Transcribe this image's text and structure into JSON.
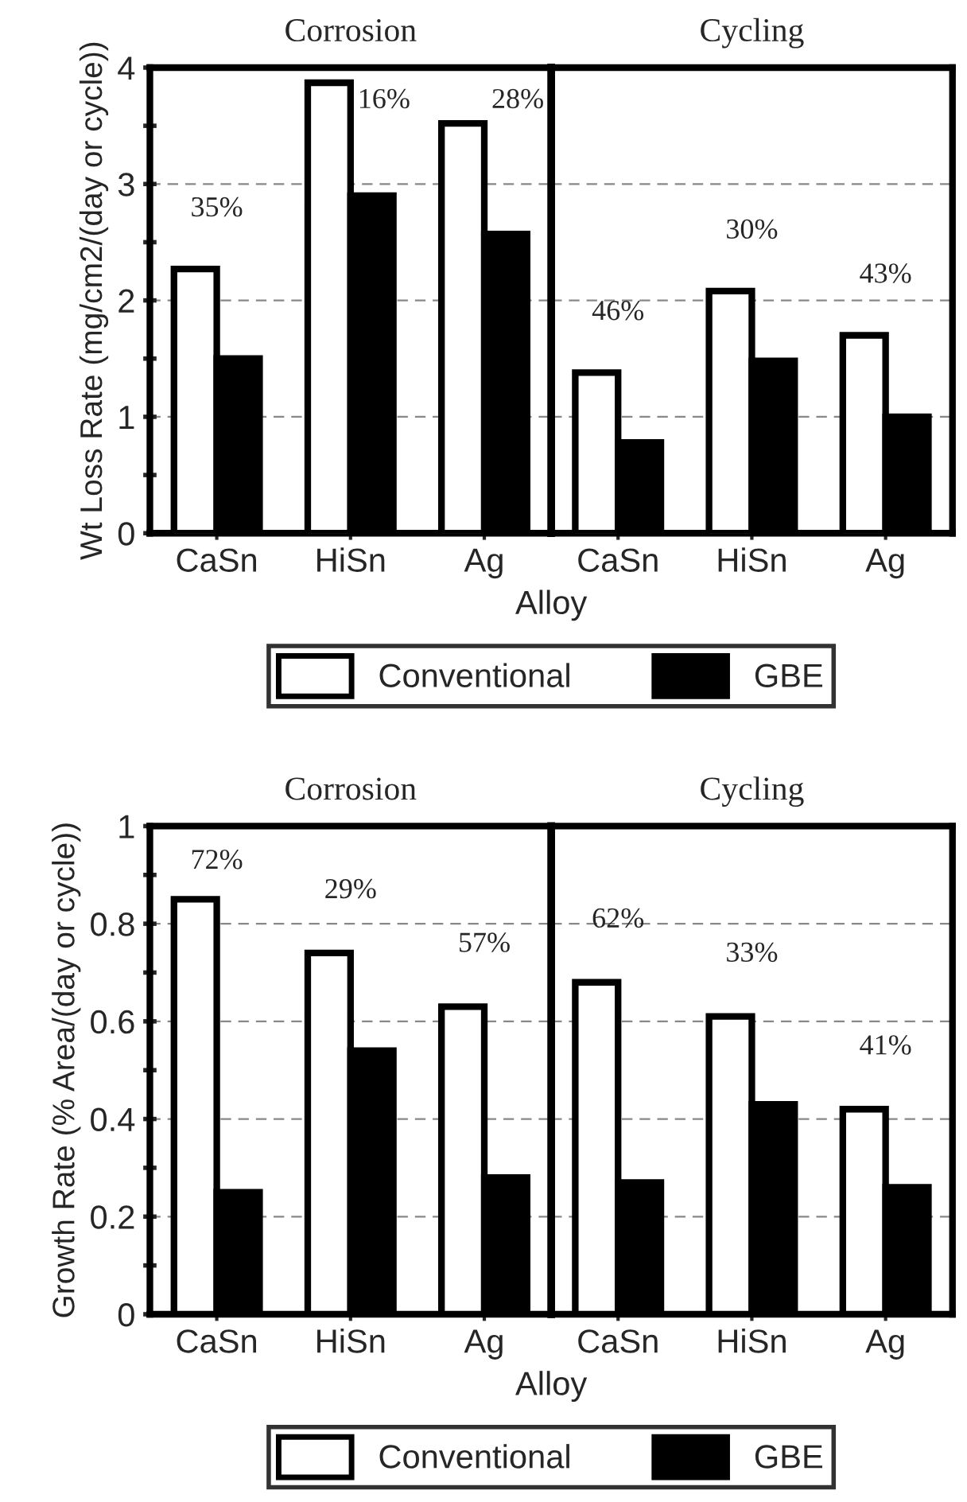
{
  "chart_data": [
    {
      "type": "bar",
      "title": "Corrosion",
      "xlabel": "Alloy",
      "ylabel": "Wt Loss Rate (mg/cm2/(day or cycle))",
      "categories": [
        "CaSn",
        "HiSn",
        "Ag"
      ],
      "series": [
        {
          "name": "Conventional",
          "color": "#ffffff",
          "values": [
            2.27,
            3.87,
            3.52
          ]
        },
        {
          "name": "GBE",
          "color": "#000000",
          "values": [
            1.5,
            2.9,
            2.57
          ]
        }
      ],
      "ylim": [
        0,
        4
      ],
      "yticks": [
        0,
        1,
        2,
        3,
        4
      ],
      "grid": "y",
      "legend": "bottom",
      "annotations": [
        "35%",
        "16%",
        "28%"
      ]
    },
    {
      "type": "bar",
      "title": "Cycling",
      "categories": [
        "CaSn",
        "HiSn",
        "Ag"
      ],
      "series": [
        {
          "color": "#ffffff",
          "values": [
            1.38,
            2.08,
            1.7
          ]
        },
        {
          "color": "#000000",
          "values": [
            0.78,
            1.48,
            1.0
          ]
        }
      ],
      "ylim": [
        0,
        4
      ],
      "yticks": [
        0,
        1,
        2,
        3,
        4
      ],
      "grid": "y",
      "tick_labels": "x",
      "annotations": [
        "46%",
        "30%",
        "43%"
      ]
    },
    {
      "type": "bar",
      "title": "Corrosion",
      "xlabel": "Alloy",
      "ylabel": "Growth Rate (% Area/(day or cycle))",
      "categories": [
        "CaSn",
        "HiSn",
        "Ag"
      ],
      "series": [
        {
          "name": "Conventional",
          "color": "#ffffff",
          "values": [
            0.85,
            0.74,
            0.63
          ]
        },
        {
          "name": "GBE",
          "color": "#000000",
          "values": [
            0.25,
            0.54,
            0.28
          ]
        }
      ],
      "ylim": [
        0,
        1
      ],
      "yticks": [
        0,
        0.2,
        0.4,
        0.6,
        0.8,
        1
      ],
      "grid": "y",
      "legend": "bottom",
      "annotations": [
        "72%",
        "29%",
        "57%"
      ]
    },
    {
      "type": "bar",
      "title": "Cycling",
      "categories": [
        "CaSn",
        "HiSn",
        "Ag"
      ],
      "series": [
        {
          "color": "#ffffff",
          "values": [
            0.68,
            0.61,
            0.42
          ]
        },
        {
          "color": "#000000",
          "values": [
            0.27,
            0.43,
            0.26
          ]
        }
      ],
      "ylim": [
        0,
        1
      ],
      "yticks": [
        0,
        0.2,
        0.4,
        0.6,
        0.8,
        1
      ],
      "grid": "y",
      "tick_labels": "x",
      "annotations": [
        "62%",
        "33%",
        "41%"
      ]
    }
  ]
}
